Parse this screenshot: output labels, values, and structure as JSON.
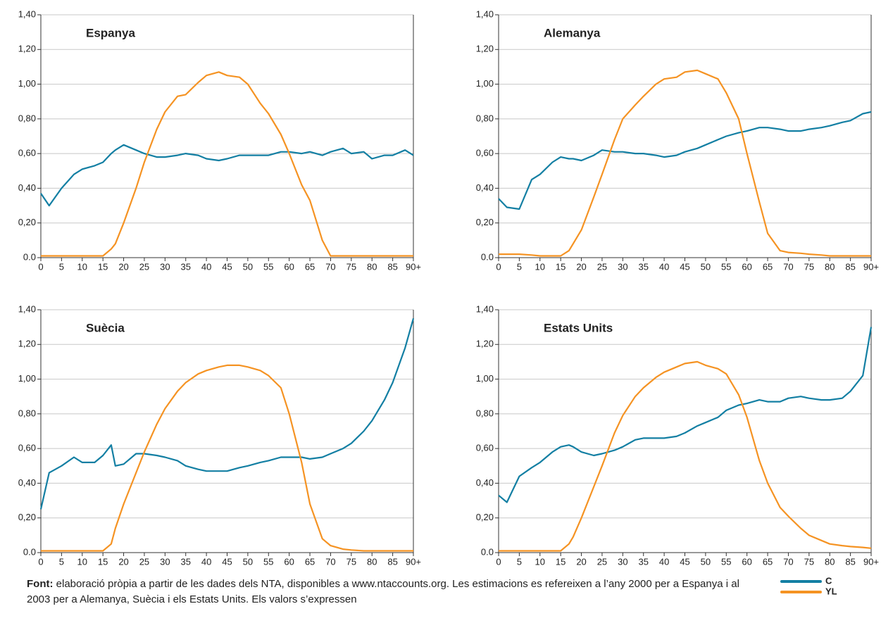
{
  "chart_data": [
    {
      "type": "line",
      "title": "Espanya",
      "x": [
        0,
        2,
        5,
        8,
        10,
        13,
        15,
        17,
        18,
        20,
        23,
        25,
        28,
        30,
        33,
        35,
        38,
        40,
        43,
        45,
        48,
        50,
        53,
        55,
        58,
        60,
        63,
        65,
        68,
        70,
        73,
        75,
        78,
        80,
        83,
        85,
        88,
        90
      ],
      "xlim": [
        0,
        90
      ],
      "xticks": [
        0,
        5,
        10,
        15,
        20,
        25,
        30,
        35,
        40,
        45,
        50,
        55,
        60,
        65,
        70,
        75,
        80,
        85,
        {
          "value": 90,
          "label": "90+"
        }
      ],
      "ylim": [
        0,
        1.4
      ],
      "yticks": [
        {
          "value": 0,
          "label": "0.0"
        },
        {
          "value": 0.2,
          "label": "0,20"
        },
        {
          "value": 0.4,
          "label": "0,40"
        },
        {
          "value": 0.6,
          "label": "0,60"
        },
        {
          "value": 0.8,
          "label": "0,80"
        },
        {
          "value": 1.0,
          "label": "1,00"
        },
        {
          "value": 1.2,
          "label": "1,20"
        },
        {
          "value": 1.4,
          "label": "1,40"
        }
      ],
      "grid": true,
      "series": [
        {
          "name": "C",
          "color": "#137fa3",
          "values": [
            0.37,
            0.3,
            0.4,
            0.48,
            0.51,
            0.53,
            0.55,
            0.6,
            0.62,
            0.65,
            0.62,
            0.6,
            0.58,
            0.58,
            0.59,
            0.6,
            0.59,
            0.57,
            0.56,
            0.57,
            0.59,
            0.59,
            0.59,
            0.59,
            0.61,
            0.61,
            0.6,
            0.61,
            0.59,
            0.61,
            0.63,
            0.6,
            0.61,
            0.57,
            0.59,
            0.59,
            0.62,
            0.59
          ]
        },
        {
          "name": "YL",
          "color": "#f59323",
          "values": [
            0.01,
            0.01,
            0.01,
            0.01,
            0.01,
            0.01,
            0.01,
            0.05,
            0.08,
            0.2,
            0.4,
            0.55,
            0.74,
            0.84,
            0.93,
            0.94,
            1.01,
            1.05,
            1.07,
            1.05,
            1.04,
            1.0,
            0.89,
            0.83,
            0.71,
            0.6,
            0.42,
            0.33,
            0.1,
            0.01,
            0.01,
            0.01,
            0.01,
            0.01,
            0.01,
            0.01,
            0.01,
            0.01
          ]
        }
      ]
    },
    {
      "type": "line",
      "title": "Alemanya",
      "x": [
        0,
        2,
        5,
        8,
        10,
        13,
        15,
        17,
        18,
        20,
        23,
        25,
        28,
        30,
        33,
        35,
        38,
        40,
        43,
        45,
        48,
        50,
        53,
        55,
        58,
        60,
        63,
        65,
        68,
        70,
        73,
        75,
        78,
        80,
        83,
        85,
        88,
        90
      ],
      "xlim": [
        0,
        90
      ],
      "xticks": [
        0,
        5,
        10,
        15,
        20,
        25,
        30,
        35,
        40,
        45,
        50,
        55,
        60,
        65,
        70,
        75,
        80,
        85,
        {
          "value": 90,
          "label": "90+"
        }
      ],
      "ylim": [
        0,
        1.4
      ],
      "yticks": [
        {
          "value": 0,
          "label": "0.0"
        },
        {
          "value": 0.2,
          "label": "0,20"
        },
        {
          "value": 0.4,
          "label": "0,40"
        },
        {
          "value": 0.6,
          "label": "0,60"
        },
        {
          "value": 0.8,
          "label": "0,80"
        },
        {
          "value": 1.0,
          "label": "1,00"
        },
        {
          "value": 1.2,
          "label": "1,20"
        },
        {
          "value": 1.4,
          "label": "1,40"
        }
      ],
      "grid": true,
      "series": [
        {
          "name": "C",
          "color": "#137fa3",
          "values": [
            0.34,
            0.29,
            0.28,
            0.45,
            0.48,
            0.55,
            0.58,
            0.57,
            0.57,
            0.56,
            0.59,
            0.62,
            0.61,
            0.61,
            0.6,
            0.6,
            0.59,
            0.58,
            0.59,
            0.61,
            0.63,
            0.65,
            0.68,
            0.7,
            0.72,
            0.73,
            0.75,
            0.75,
            0.74,
            0.73,
            0.73,
            0.74,
            0.75,
            0.76,
            0.78,
            0.79,
            0.83,
            0.84
          ]
        },
        {
          "name": "YL",
          "color": "#f59323",
          "values": [
            0.02,
            0.02,
            0.02,
            0.015,
            0.01,
            0.01,
            0.01,
            0.04,
            0.08,
            0.16,
            0.35,
            0.48,
            0.68,
            0.8,
            0.88,
            0.93,
            1.0,
            1.03,
            1.04,
            1.07,
            1.08,
            1.06,
            1.03,
            0.95,
            0.8,
            0.6,
            0.32,
            0.14,
            0.04,
            0.03,
            0.025,
            0.02,
            0.015,
            0.01,
            0.01,
            0.01,
            0.01,
            0.01
          ]
        }
      ]
    },
    {
      "type": "line",
      "title": "Suècia",
      "x": [
        0,
        2,
        5,
        8,
        10,
        13,
        15,
        17,
        18,
        20,
        23,
        25,
        28,
        30,
        33,
        35,
        38,
        40,
        43,
        45,
        48,
        50,
        53,
        55,
        58,
        60,
        63,
        65,
        68,
        70,
        73,
        75,
        78,
        80,
        83,
        85,
        88,
        90
      ],
      "xlim": [
        0,
        90
      ],
      "xticks": [
        0,
        5,
        10,
        15,
        20,
        25,
        30,
        35,
        40,
        45,
        50,
        55,
        60,
        65,
        70,
        75,
        80,
        85,
        {
          "value": 90,
          "label": "90+"
        }
      ],
      "ylim": [
        0,
        1.4
      ],
      "yticks": [
        {
          "value": 0,
          "label": "0.0"
        },
        {
          "value": 0.2,
          "label": "0,20"
        },
        {
          "value": 0.4,
          "label": "0,40"
        },
        {
          "value": 0.6,
          "label": "0,60"
        },
        {
          "value": 0.8,
          "label": "0,80"
        },
        {
          "value": 1.0,
          "label": "1,00"
        },
        {
          "value": 1.2,
          "label": "1,20"
        },
        {
          "value": 1.4,
          "label": "1,40"
        }
      ],
      "grid": true,
      "series": [
        {
          "name": "C",
          "color": "#137fa3",
          "values": [
            0.25,
            0.46,
            0.5,
            0.55,
            0.52,
            0.52,
            0.56,
            0.62,
            0.5,
            0.51,
            0.57,
            0.57,
            0.56,
            0.55,
            0.53,
            0.5,
            0.48,
            0.47,
            0.47,
            0.47,
            0.49,
            0.5,
            0.52,
            0.53,
            0.55,
            0.55,
            0.55,
            0.54,
            0.55,
            0.57,
            0.6,
            0.63,
            0.7,
            0.76,
            0.88,
            0.98,
            1.18,
            1.35
          ]
        },
        {
          "name": "YL",
          "color": "#f59323",
          "values": [
            0.01,
            0.01,
            0.01,
            0.01,
            0.01,
            0.01,
            0.01,
            0.05,
            0.14,
            0.28,
            0.46,
            0.58,
            0.74,
            0.83,
            0.93,
            0.98,
            1.03,
            1.05,
            1.07,
            1.08,
            1.08,
            1.07,
            1.05,
            1.02,
            0.95,
            0.8,
            0.52,
            0.28,
            0.08,
            0.04,
            0.02,
            0.015,
            0.01,
            0.01,
            0.01,
            0.01,
            0.01,
            0.01
          ]
        }
      ]
    },
    {
      "type": "line",
      "title": "Estats Units",
      "x": [
        0,
        2,
        5,
        8,
        10,
        13,
        15,
        17,
        18,
        20,
        23,
        25,
        28,
        30,
        33,
        35,
        38,
        40,
        43,
        45,
        48,
        50,
        53,
        55,
        58,
        60,
        63,
        65,
        68,
        70,
        73,
        75,
        78,
        80,
        83,
        85,
        88,
        90
      ],
      "xlim": [
        0,
        90
      ],
      "xticks": [
        0,
        5,
        10,
        15,
        20,
        25,
        30,
        35,
        40,
        45,
        50,
        55,
        60,
        65,
        70,
        75,
        80,
        85,
        {
          "value": 90,
          "label": "90+"
        }
      ],
      "ylim": [
        0,
        1.4
      ],
      "yticks": [
        {
          "value": 0,
          "label": "0.0"
        },
        {
          "value": 0.2,
          "label": "0,20"
        },
        {
          "value": 0.4,
          "label": "0,40"
        },
        {
          "value": 0.6,
          "label": "0,60"
        },
        {
          "value": 0.8,
          "label": "0,80"
        },
        {
          "value": 1.0,
          "label": "1,00"
        },
        {
          "value": 1.2,
          "label": "1,20"
        },
        {
          "value": 1.4,
          "label": "1,40"
        }
      ],
      "grid": true,
      "series": [
        {
          "name": "C",
          "color": "#137fa3",
          "values": [
            0.33,
            0.29,
            0.44,
            0.49,
            0.52,
            0.58,
            0.61,
            0.62,
            0.61,
            0.58,
            0.56,
            0.57,
            0.59,
            0.61,
            0.65,
            0.66,
            0.66,
            0.66,
            0.67,
            0.69,
            0.73,
            0.75,
            0.78,
            0.82,
            0.85,
            0.86,
            0.88,
            0.87,
            0.87,
            0.89,
            0.9,
            0.89,
            0.88,
            0.88,
            0.89,
            0.93,
            1.02,
            1.3
          ]
        },
        {
          "name": "YL",
          "color": "#f59323",
          "values": [
            0.01,
            0.01,
            0.01,
            0.01,
            0.01,
            0.01,
            0.01,
            0.05,
            0.09,
            0.2,
            0.38,
            0.5,
            0.69,
            0.79,
            0.9,
            0.95,
            1.01,
            1.04,
            1.07,
            1.09,
            1.1,
            1.08,
            1.06,
            1.03,
            0.91,
            0.78,
            0.53,
            0.4,
            0.26,
            0.21,
            0.14,
            0.1,
            0.07,
            0.05,
            0.04,
            0.035,
            0.03,
            0.025
          ]
        }
      ]
    }
  ],
  "footer": {
    "label": "Font:",
    "text": "elaboració pròpia a partir de les dades dels NTA, disponibles a www.ntaccounts.org. Les estimacions es refereixen a l’any 2000 per a Espanya i al 2003 per a Alemanya, Suècia i els Estats Units. Els valors s’expressen"
  }
}
